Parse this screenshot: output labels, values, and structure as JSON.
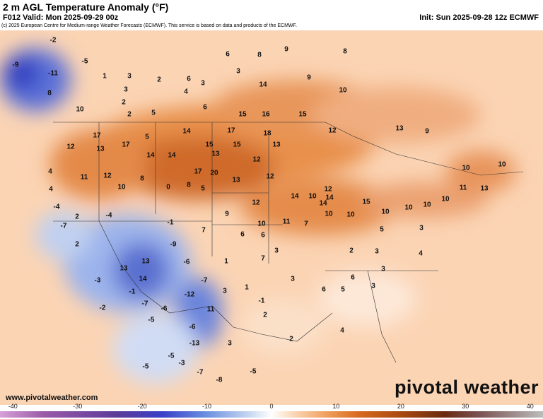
{
  "header": {
    "title": "2 m AGL Temperature Anomaly (°F)",
    "valid": "F012 Valid: Mon 2025-09-29 00z",
    "init": "Init: Sun 2025-09-28 12z ECMWF",
    "copyright": "(c) 2025 European Centre for Medium-range Weather Forecasts (ECMWF). This service is based on data and products of the ECMWF."
  },
  "footer": {
    "site": "www.pivotalweather.com",
    "brand": "pivotal weather"
  },
  "colorbar": {
    "lim": [
      -42,
      42
    ],
    "ticks": [
      -40,
      -30,
      -20,
      -10,
      0,
      10,
      20,
      30,
      40
    ]
  },
  "labels": [
    -2,
    -9,
    -11,
    -5,
    8,
    1,
    3,
    3,
    2,
    4,
    6,
    3,
    6,
    10,
    2,
    2,
    5,
    6,
    14,
    16,
    15,
    10,
    9,
    15,
    8,
    9,
    8,
    3,
    17,
    13,
    12,
    17,
    5,
    14,
    17,
    18,
    13,
    9,
    14,
    14,
    15,
    15,
    13,
    13,
    12,
    20,
    17,
    12,
    13,
    12,
    11,
    12,
    10,
    8,
    4,
    4,
    0,
    8,
    5,
    10,
    11,
    10,
    13,
    14,
    10,
    14,
    12,
    14,
    12,
    15,
    10,
    10,
    10,
    10,
    10,
    10,
    11,
    7,
    10,
    9,
    6,
    6,
    7,
    -4,
    -4,
    2,
    -7,
    2,
    -9,
    -1,
    13,
    13,
    14,
    -6,
    -7,
    -12,
    11,
    -6,
    -13,
    -7,
    -6,
    -5,
    7,
    3,
    3,
    1,
    3,
    1,
    -1,
    2,
    6,
    5,
    6,
    3,
    3,
    2,
    3,
    4,
    5,
    3,
    2,
    4,
    3,
    -5,
    -7,
    -8,
    -5,
    -5,
    -3,
    -2,
    -3,
    -1
  ]
}
